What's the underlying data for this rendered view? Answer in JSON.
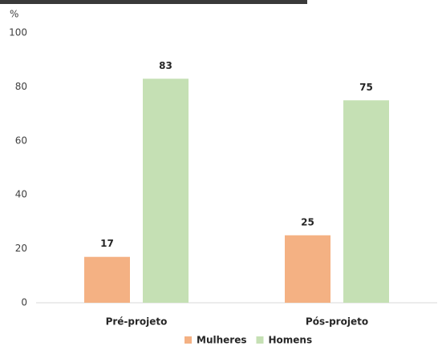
{
  "chart_data": {
    "type": "bar",
    "y_axis_label": "%",
    "categories": [
      "Pré-projeto",
      "Pós-projeto"
    ],
    "series": [
      {
        "name": "Mulheres",
        "color": "#f4b183",
        "values": [
          17,
          25
        ]
      },
      {
        "name": "Homens",
        "color": "#c5e0b4",
        "values": [
          83,
          75
        ]
      }
    ],
    "ylim": [
      0,
      100
    ],
    "yticks": [
      0,
      20,
      40,
      60,
      80,
      100
    ],
    "grid": false,
    "legend": "bottom"
  }
}
